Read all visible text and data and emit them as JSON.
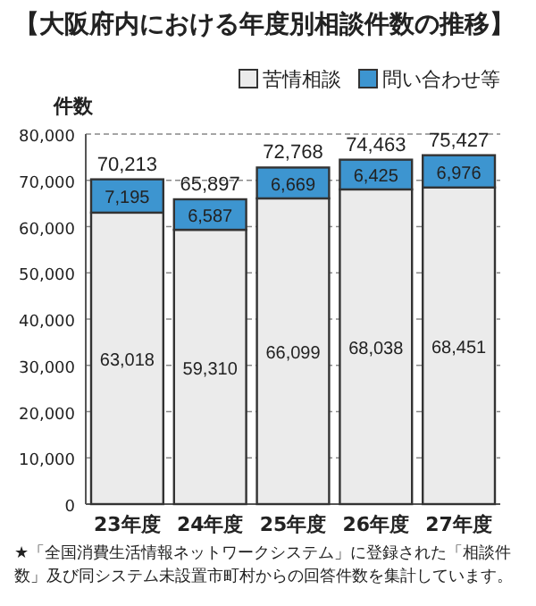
{
  "chart_data": {
    "type": "bar",
    "stacked": true,
    "title": "【大阪府内における年度別相談件数の推移】",
    "ylabel": "件数",
    "categories": [
      "23年度",
      "24年度",
      "25年度",
      "26年度",
      "27年度"
    ],
    "series": [
      {
        "name": "苦情相談",
        "color": "#ebebeb",
        "values": [
          63018,
          59310,
          66099,
          68038,
          68451
        ],
        "value_labels": [
          "63,018",
          "59,310",
          "66,099",
          "68,038",
          "68,451"
        ]
      },
      {
        "name": "問い合わせ等",
        "color": "#3d95d0",
        "values": [
          7195,
          6587,
          6669,
          6425,
          6976
        ],
        "value_labels": [
          "7,195",
          "6,587",
          "6,669",
          "6,425",
          "6,976"
        ]
      }
    ],
    "totals": [
      "70,213",
      "65,897",
      "72,768",
      "74,463",
      "75,427"
    ],
    "grid": "y",
    "legend": "top right",
    "ylim": [
      0,
      80000
    ],
    "yticks": [
      {
        "value": 0,
        "label": "0"
      },
      {
        "value": 10000,
        "label": "10,000"
      },
      {
        "value": 20000,
        "label": "20,000"
      },
      {
        "value": 30000,
        "label": "30,000"
      },
      {
        "value": 40000,
        "label": "40,000"
      },
      {
        "value": 50000,
        "label": "50,000"
      },
      {
        "value": 60000,
        "label": "60,000"
      },
      {
        "value": 70000,
        "label": "70,000"
      },
      {
        "value": 80000,
        "label": "80,000"
      }
    ],
    "annotations": [
      "★「全国消費生活情報ネットワークシステム」に登録された「相談件数」及び同システム未設置市町村からの回答件数を集計しています。"
    ]
  }
}
